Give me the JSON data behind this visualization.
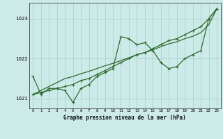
{
  "title": "Graphe pression niveau de la mer (hPa)",
  "background_color": "#cceae8",
  "grid_color": "#aad4d0",
  "line_color": "#2d6b2d",
  "x_values": [
    0,
    1,
    2,
    3,
    4,
    5,
    6,
    7,
    8,
    9,
    10,
    11,
    12,
    13,
    14,
    15,
    16,
    17,
    18,
    19,
    20,
    21,
    22,
    23
  ],
  "y_main": [
    1021.55,
    1021.1,
    1021.25,
    1021.25,
    1021.2,
    1020.9,
    1021.25,
    1021.35,
    1021.55,
    1021.65,
    1021.75,
    1022.55,
    1022.5,
    1022.35,
    1022.4,
    1022.2,
    1021.9,
    1021.75,
    1021.8,
    1022.0,
    1022.1,
    1022.2,
    1023.0,
    1023.25
  ],
  "y_smooth": [
    1021.1,
    1021.15,
    1021.2,
    1021.25,
    1021.3,
    1021.35,
    1021.45,
    1021.5,
    1021.6,
    1021.7,
    1021.8,
    1021.9,
    1022.0,
    1022.1,
    1022.15,
    1022.25,
    1022.35,
    1022.45,
    1022.5,
    1022.6,
    1022.7,
    1022.8,
    1023.0,
    1023.25
  ],
  "y_trend": [
    1021.1,
    1021.2,
    1021.3,
    1021.4,
    1021.5,
    1021.55,
    1021.62,
    1021.68,
    1021.75,
    1021.82,
    1021.88,
    1021.95,
    1022.02,
    1022.1,
    1022.15,
    1022.22,
    1022.3,
    1022.37,
    1022.42,
    1022.5,
    1022.56,
    1022.65,
    1022.85,
    1023.25
  ],
  "ylim": [
    1020.75,
    1023.4
  ],
  "yticks": [
    1021,
    1022,
    1023
  ],
  "xlim": [
    -0.5,
    23.5
  ],
  "xticks": [
    0,
    1,
    2,
    3,
    4,
    5,
    6,
    7,
    8,
    9,
    10,
    11,
    12,
    13,
    14,
    15,
    16,
    17,
    18,
    19,
    20,
    21,
    22,
    23
  ]
}
